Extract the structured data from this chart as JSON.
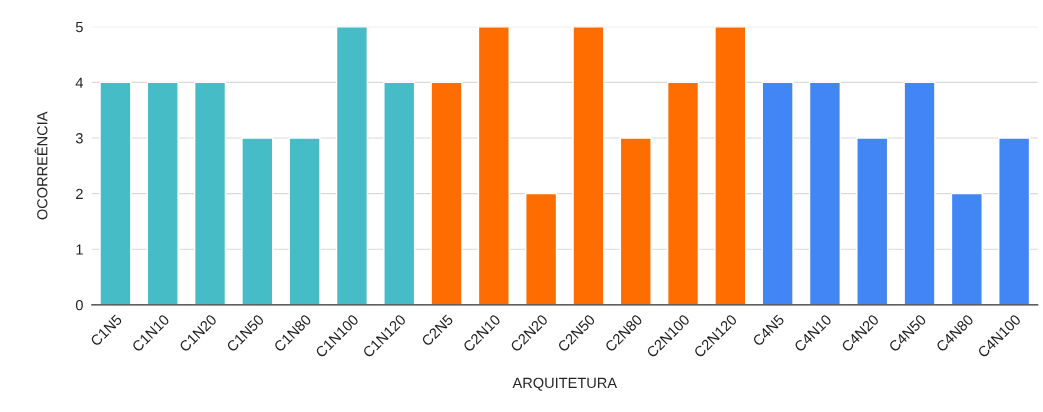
{
  "chart_data": {
    "type": "bar",
    "xlabel": "ARQUITETURA",
    "ylabel": "OCORREÊNCIA",
    "categories": [
      "C1N5",
      "C1N10",
      "C1N20",
      "C1N50",
      "C1N80",
      "C1N100",
      "C1N120",
      "C2N5",
      "C2N10",
      "C2N20",
      "C2N50",
      "C2N80",
      "C2N100",
      "C2N120",
      "C4N5",
      "C4N10",
      "C4N20",
      "C4N50",
      "C4N80",
      "C4N100"
    ],
    "values": [
      4,
      4,
      4,
      3,
      3,
      5,
      4,
      4,
      5,
      2,
      5,
      3,
      4,
      5,
      4,
      4,
      3,
      4,
      2,
      3
    ],
    "colors": [
      "#46bdc6",
      "#46bdc6",
      "#46bdc6",
      "#46bdc6",
      "#46bdc6",
      "#46bdc6",
      "#46bdc6",
      "#ff6d01",
      "#ff6d01",
      "#ff6d01",
      "#ff6d01",
      "#ff6d01",
      "#ff6d01",
      "#ff6d01",
      "#4285f4",
      "#4285f4",
      "#4285f4",
      "#4285f4",
      "#4285f4",
      "#4285f4"
    ],
    "ylim": [
      0,
      5
    ],
    "yticks": [
      0,
      1,
      2,
      3,
      4,
      5
    ],
    "grid": "y"
  }
}
